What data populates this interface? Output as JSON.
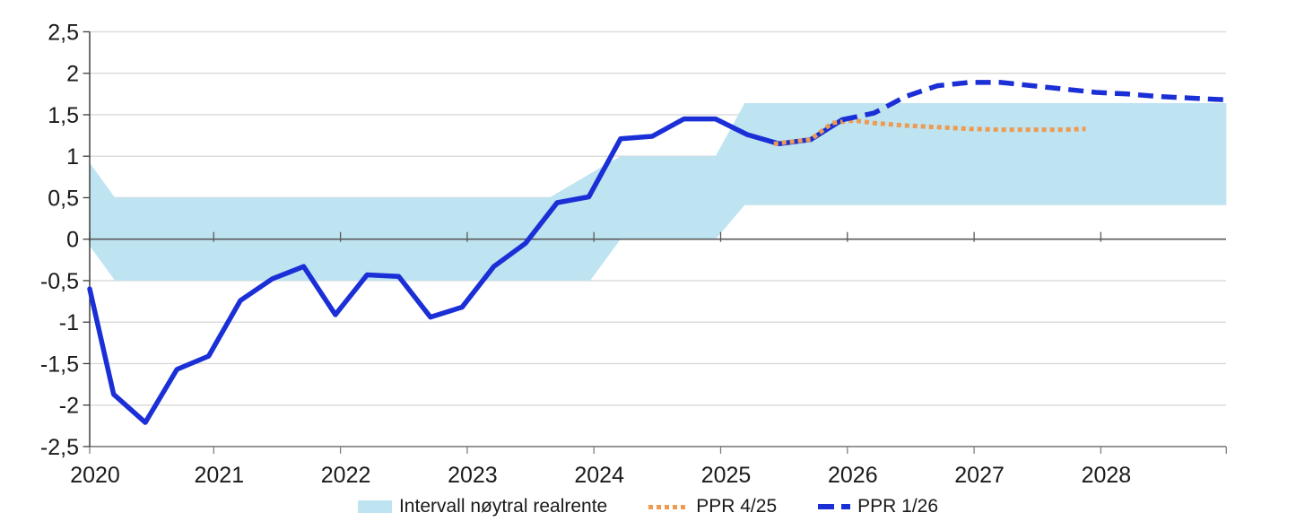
{
  "colors": {
    "background": "#FFFFFF",
    "band": "#BEE3F1",
    "ppr_4_25": "#EE9B52",
    "ppr_1_26": "#1B2FD6",
    "gridline": "#D9D9D9",
    "zero_line": "#595959",
    "bottom_axis": "#7F7F7F",
    "left_axis": "#404040",
    "text": "#1A1A1A"
  },
  "legend": {
    "items": [
      {
        "id": "band",
        "label": "Intervall nøytral realrente",
        "swatch": "area",
        "color_key": "band"
      },
      {
        "id": "ppr425",
        "label": "PPR 4/25",
        "swatch": "dotted",
        "color_key": "ppr_4_25"
      },
      {
        "id": "ppr126",
        "label": "PPR 1/26",
        "swatch": "dashed",
        "color_key": "ppr_1_26"
      }
    ]
  },
  "chart_data": {
    "type": "line",
    "title": "",
    "grid": "horizontal",
    "legend_position": "bottom",
    "x_axis": {
      "range": [
        2020.02,
        2028.99
      ],
      "ticks": [
        {
          "value": 2020,
          "label": "2020"
        },
        {
          "value": 2021,
          "label": "2021"
        },
        {
          "value": 2022,
          "label": "2022"
        },
        {
          "value": 2023,
          "label": "2023"
        },
        {
          "value": 2024,
          "label": "2024"
        },
        {
          "value": 2025,
          "label": "2025"
        },
        {
          "value": 2026,
          "label": "2026"
        },
        {
          "value": 2027,
          "label": "2027"
        },
        {
          "value": 2028,
          "label": "2028"
        }
      ],
      "edge_tick": 2028.99
    },
    "y_axis": {
      "range": [
        -2.5,
        2.5
      ],
      "ticks": [
        {
          "value": 2.5,
          "label": "2,5"
        },
        {
          "value": 2,
          "label": "2"
        },
        {
          "value": 1.5,
          "label": "1,5"
        },
        {
          "value": 1,
          "label": "1"
        },
        {
          "value": 0.5,
          "label": "0,5"
        },
        {
          "value": 0,
          "label": "0"
        },
        {
          "value": -0.5,
          "label": "-0,5"
        },
        {
          "value": -1,
          "label": "-1"
        },
        {
          "value": -1.5,
          "label": "-1,5"
        },
        {
          "value": -2,
          "label": "-2"
        },
        {
          "value": -2.5,
          "label": "-2,5"
        }
      ],
      "gridlines": [
        2.5,
        2,
        1.5,
        1,
        0.5,
        -0.5,
        -1,
        -1.5,
        -2
      ]
    },
    "band": {
      "name": "Intervall nøytral realrente",
      "color_key": "band",
      "points_t_bottom_top": [
        [
          2020.02,
          -0.08,
          0.92
        ],
        [
          2020.22,
          -0.5,
          0.5
        ],
        [
          2023.65,
          -0.5,
          0.5
        ],
        [
          2023.97,
          -0.5,
          0.79
        ],
        [
          2024.21,
          0.0,
          1.0
        ],
        [
          2024.96,
          0.0,
          1.0
        ],
        [
          2025.19,
          0.41,
          1.64
        ],
        [
          2028.99,
          0.41,
          1.64
        ]
      ]
    },
    "series": [
      {
        "name": "PPR 1/26",
        "style": "solid_then_dashed",
        "solid_until": 2025.96,
        "color_key": "ppr_1_26",
        "points": [
          [
            2020.02,
            -0.6
          ],
          [
            2020.21,
            -1.87
          ],
          [
            2020.46,
            -2.21
          ],
          [
            2020.71,
            -1.57
          ],
          [
            2020.96,
            -1.41
          ],
          [
            2021.21,
            -0.74
          ],
          [
            2021.46,
            -0.48
          ],
          [
            2021.71,
            -0.33
          ],
          [
            2021.96,
            -0.91
          ],
          [
            2022.21,
            -0.43
          ],
          [
            2022.46,
            -0.45
          ],
          [
            2022.71,
            -0.94
          ],
          [
            2022.96,
            -0.82
          ],
          [
            2023.21,
            -0.33
          ],
          [
            2023.46,
            -0.05
          ],
          [
            2023.71,
            0.44
          ],
          [
            2023.96,
            0.51
          ],
          [
            2024.21,
            1.21
          ],
          [
            2024.46,
            1.24
          ],
          [
            2024.71,
            1.45
          ],
          [
            2024.96,
            1.45
          ],
          [
            2025.21,
            1.26
          ],
          [
            2025.46,
            1.15
          ],
          [
            2025.71,
            1.2
          ],
          [
            2025.96,
            1.44
          ],
          [
            2026.21,
            1.52
          ],
          [
            2026.46,
            1.72
          ],
          [
            2026.71,
            1.85
          ],
          [
            2026.96,
            1.89
          ],
          [
            2027.21,
            1.89
          ],
          [
            2027.46,
            1.85
          ],
          [
            2027.71,
            1.81
          ],
          [
            2027.96,
            1.77
          ],
          [
            2028.21,
            1.75
          ],
          [
            2028.46,
            1.72
          ],
          [
            2028.71,
            1.7
          ],
          [
            2028.99,
            1.68
          ]
        ]
      },
      {
        "name": "PPR 4/25",
        "style": "dotted",
        "color_key": "ppr_4_25",
        "points": [
          [
            2025.42,
            1.15
          ],
          [
            2025.71,
            1.2
          ],
          [
            2025.88,
            1.4
          ],
          [
            2026.05,
            1.43
          ],
          [
            2026.21,
            1.4
          ],
          [
            2026.46,
            1.37
          ],
          [
            2026.71,
            1.35
          ],
          [
            2026.96,
            1.33
          ],
          [
            2027.21,
            1.32
          ],
          [
            2027.46,
            1.32
          ],
          [
            2027.71,
            1.32
          ],
          [
            2027.88,
            1.33
          ]
        ]
      }
    ]
  }
}
